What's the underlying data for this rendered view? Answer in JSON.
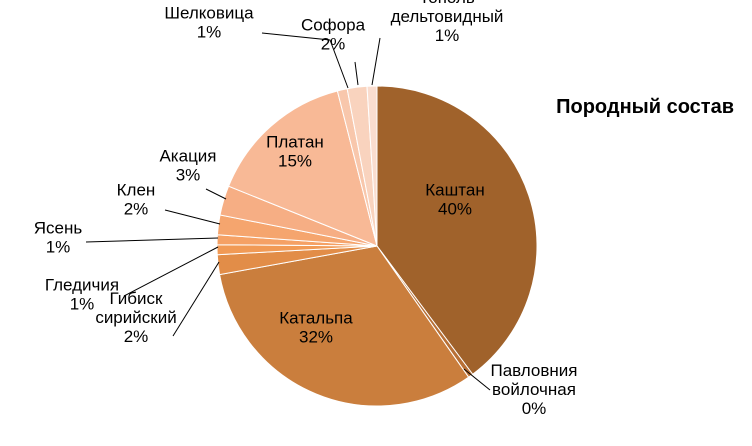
{
  "chart_data": {
    "type": "pie",
    "title": "Породный состав",
    "slices": [
      {
        "name": "Каштан",
        "value": 40,
        "label": "40%",
        "color": "#A0622B"
      },
      {
        "name": "Павловния войлочная",
        "value": 0.5,
        "label": "0%",
        "color": "#B87036"
      },
      {
        "name": "Катальпа",
        "value": 32,
        "label": "32%",
        "color": "#CA7E3D"
      },
      {
        "name": "Гибиск сирийский",
        "value": 2,
        "label": "2%",
        "color": "#E28D48"
      },
      {
        "name": "Гледичия",
        "value": 1,
        "label": "1%",
        "color": "#F19A55"
      },
      {
        "name": "Ясень",
        "value": 1,
        "label": "1%",
        "color": "#F5A165"
      },
      {
        "name": "Клен",
        "value": 2,
        "label": "2%",
        "color": "#F5A56E"
      },
      {
        "name": "Акация",
        "value": 3,
        "label": "3%",
        "color": "#F6AE84"
      },
      {
        "name": "Платан",
        "value": 15,
        "label": "15%",
        "color": "#F8B996"
      },
      {
        "name": "Шелковица",
        "value": 1,
        "label": "1%",
        "color": "#F8C7AC"
      },
      {
        "name": "Софора",
        "value": 2,
        "label": "2%",
        "color": "#F9D3BE"
      },
      {
        "name": "Тополь дельтовидный",
        "value": 1,
        "label": "1%",
        "color": "#FADDCF"
      }
    ]
  }
}
